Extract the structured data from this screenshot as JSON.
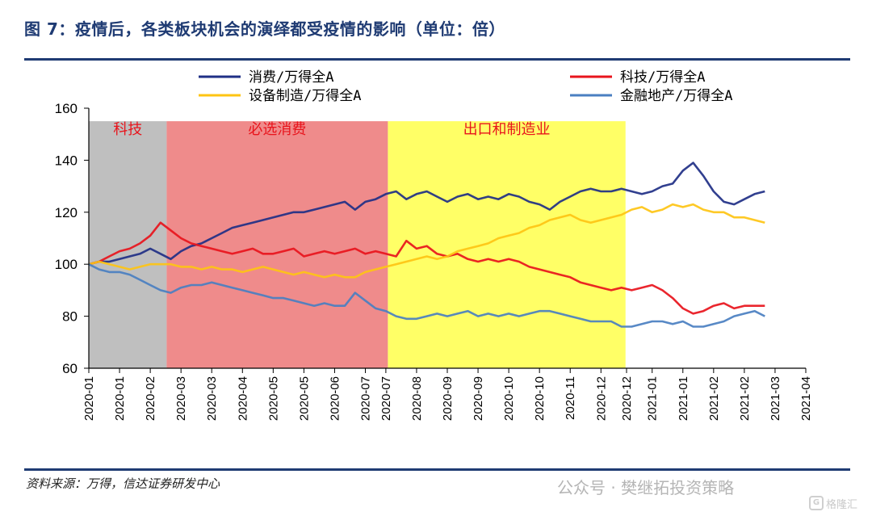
{
  "title": "图 7：疫情后，各类板块机会的演绎都受疫情的影响（单位：倍）",
  "source": "资料来源：万得，信达证券研发中心",
  "watermark": "公众号 · 樊继拓投资策略",
  "logo_text": "格隆汇",
  "chart_data": {
    "type": "line",
    "title": "图 7：疫情后，各类板块机会的演绎都受疫情的影响（单位：倍）",
    "ylim": [
      60,
      160
    ],
    "yticks": [
      60,
      80,
      100,
      120,
      140,
      160
    ],
    "x_range": [
      0,
      66
    ],
    "xtick_labels": [
      "2020-01",
      "2020-01",
      "2020-02",
      "2020-03",
      "2020-03",
      "2020-04",
      "2020-05",
      "2020-05",
      "2020-06",
      "2020-07",
      "2020-07",
      "2020-08",
      "2020-09",
      "2020-09",
      "2020-10",
      "2020-10",
      "2020-11",
      "2020-12",
      "2020-12",
      "2021-01",
      "2021-01",
      "2021-02",
      "2021-02",
      "2021-03",
      "2021-04"
    ],
    "xtick_positions": [
      0,
      3,
      6,
      9,
      12,
      15,
      18,
      21,
      24,
      27,
      29,
      32,
      35,
      38,
      41,
      44,
      47,
      50,
      52.5,
      55,
      58,
      61,
      64,
      67,
      70
    ],
    "grid": false,
    "legend_placement": "top",
    "regions": [
      {
        "label": "科技",
        "from": 0,
        "to": 7.6,
        "color": "#bfbfbf"
      },
      {
        "label": "必选消费",
        "from": 7.6,
        "to": 29.2,
        "color": "#ef8b8b"
      },
      {
        "label": "出口和制造业",
        "from": 29.2,
        "to": 52.4,
        "color": "#ffff66"
      }
    ],
    "series": [
      {
        "name": "消费/万得全A",
        "color": "#1f2f86",
        "x": [
          0,
          1,
          2,
          3,
          4,
          5,
          6,
          7,
          8,
          9,
          10,
          11,
          12,
          13,
          14,
          15,
          16,
          17,
          18,
          19,
          20,
          21,
          22,
          23,
          24,
          25,
          26,
          27,
          28,
          29,
          30,
          31,
          32,
          33,
          34,
          35,
          36,
          37,
          38,
          39,
          40,
          41,
          42,
          43,
          44,
          45,
          46,
          47,
          48,
          49,
          50,
          51,
          52,
          53,
          54,
          55,
          56,
          57,
          58,
          59,
          60,
          61,
          62,
          63,
          64,
          65,
          66
        ],
        "y": [
          100,
          101,
          101,
          102,
          103,
          104,
          106,
          104,
          102,
          105,
          107,
          108,
          110,
          112,
          114,
          115,
          116,
          117,
          118,
          119,
          120,
          120,
          121,
          122,
          123,
          124,
          121,
          124,
          125,
          127,
          128,
          125,
          127,
          128,
          126,
          124,
          126,
          127,
          125,
          126,
          125,
          127,
          126,
          124,
          123,
          121,
          124,
          126,
          128,
          129,
          128,
          128,
          129,
          128,
          127,
          128,
          130,
          131,
          136,
          139,
          134,
          128,
          124,
          123,
          125,
          127,
          128
        ]
      },
      {
        "name": "科技/万得全A",
        "color": "#e8141c",
        "x": [
          0,
          1,
          2,
          3,
          4,
          5,
          6,
          7,
          8,
          9,
          10,
          11,
          12,
          13,
          14,
          15,
          16,
          17,
          18,
          19,
          20,
          21,
          22,
          23,
          24,
          25,
          26,
          27,
          28,
          29,
          30,
          31,
          32,
          33,
          34,
          35,
          36,
          37,
          38,
          39,
          40,
          41,
          42,
          43,
          44,
          45,
          46,
          47,
          48,
          49,
          50,
          51,
          52,
          53,
          54,
          55,
          56,
          57,
          58,
          59,
          60,
          61,
          62,
          63,
          64,
          65,
          66
        ],
        "y": [
          100,
          101,
          103,
          105,
          106,
          108,
          111,
          116,
          113,
          110,
          108,
          107,
          106,
          105,
          104,
          105,
          106,
          104,
          104,
          105,
          106,
          103,
          104,
          105,
          104,
          105,
          106,
          104,
          105,
          104,
          103,
          109,
          106,
          107,
          104,
          103,
          104,
          102,
          101,
          102,
          101,
          102,
          101,
          99,
          98,
          97,
          96,
          95,
          93,
          92,
          91,
          90,
          91,
          90,
          91,
          92,
          90,
          87,
          83,
          81,
          82,
          84,
          85,
          83,
          84,
          84,
          84
        ]
      },
      {
        "name": "设备制造/万得全A",
        "color": "#fec413",
        "x": [
          0,
          1,
          2,
          3,
          4,
          5,
          6,
          7,
          8,
          9,
          10,
          11,
          12,
          13,
          14,
          15,
          16,
          17,
          18,
          19,
          20,
          21,
          22,
          23,
          24,
          25,
          26,
          27,
          28,
          29,
          30,
          31,
          32,
          33,
          34,
          35,
          36,
          37,
          38,
          39,
          40,
          41,
          42,
          43,
          44,
          45,
          46,
          47,
          48,
          49,
          50,
          51,
          52,
          53,
          54,
          55,
          56,
          57,
          58,
          59,
          60,
          61,
          62,
          63,
          64,
          65,
          66
        ],
        "y": [
          100,
          101,
          100,
          99,
          98,
          99,
          100,
          100,
          100,
          99,
          99,
          98,
          99,
          98,
          98,
          97,
          98,
          99,
          98,
          97,
          96,
          97,
          96,
          95,
          96,
          95,
          95,
          97,
          98,
          99,
          100,
          101,
          102,
          103,
          102,
          103,
          105,
          106,
          107,
          108,
          110,
          111,
          112,
          114,
          115,
          117,
          118,
          119,
          117,
          116,
          117,
          118,
          119,
          121,
          122,
          120,
          121,
          123,
          122,
          123,
          121,
          120,
          120,
          118,
          118,
          117,
          116
        ]
      },
      {
        "name": "金融地产/万得全A",
        "color": "#4a7fc1",
        "x": [
          0,
          1,
          2,
          3,
          4,
          5,
          6,
          7,
          8,
          9,
          10,
          11,
          12,
          13,
          14,
          15,
          16,
          17,
          18,
          19,
          20,
          21,
          22,
          23,
          24,
          25,
          26,
          27,
          28,
          29,
          30,
          31,
          32,
          33,
          34,
          35,
          36,
          37,
          38,
          39,
          40,
          41,
          42,
          43,
          44,
          45,
          46,
          47,
          48,
          49,
          50,
          51,
          52,
          53,
          54,
          55,
          56,
          57,
          58,
          59,
          60,
          61,
          62,
          63,
          64,
          65,
          66
        ],
        "y": [
          100,
          98,
          97,
          97,
          96,
          94,
          92,
          90,
          89,
          91,
          92,
          92,
          93,
          92,
          91,
          90,
          89,
          88,
          87,
          87,
          86,
          85,
          84,
          85,
          84,
          84,
          89,
          86,
          83,
          82,
          80,
          79,
          79,
          80,
          81,
          80,
          81,
          82,
          80,
          81,
          80,
          81,
          80,
          81,
          82,
          82,
          81,
          80,
          79,
          78,
          78,
          78,
          76,
          76,
          77,
          78,
          78,
          77,
          78,
          76,
          76,
          77,
          78,
          80,
          81,
          82,
          80
        ]
      }
    ],
    "legend": [
      {
        "label": "消费/万得全A",
        "color": "#1f2f86"
      },
      {
        "label": "科技/万得全A",
        "color": "#e8141c"
      },
      {
        "label": "设备制造/万得全A",
        "color": "#fec413"
      },
      {
        "label": "金融地产/万得全A",
        "color": "#4a7fc1"
      }
    ]
  }
}
